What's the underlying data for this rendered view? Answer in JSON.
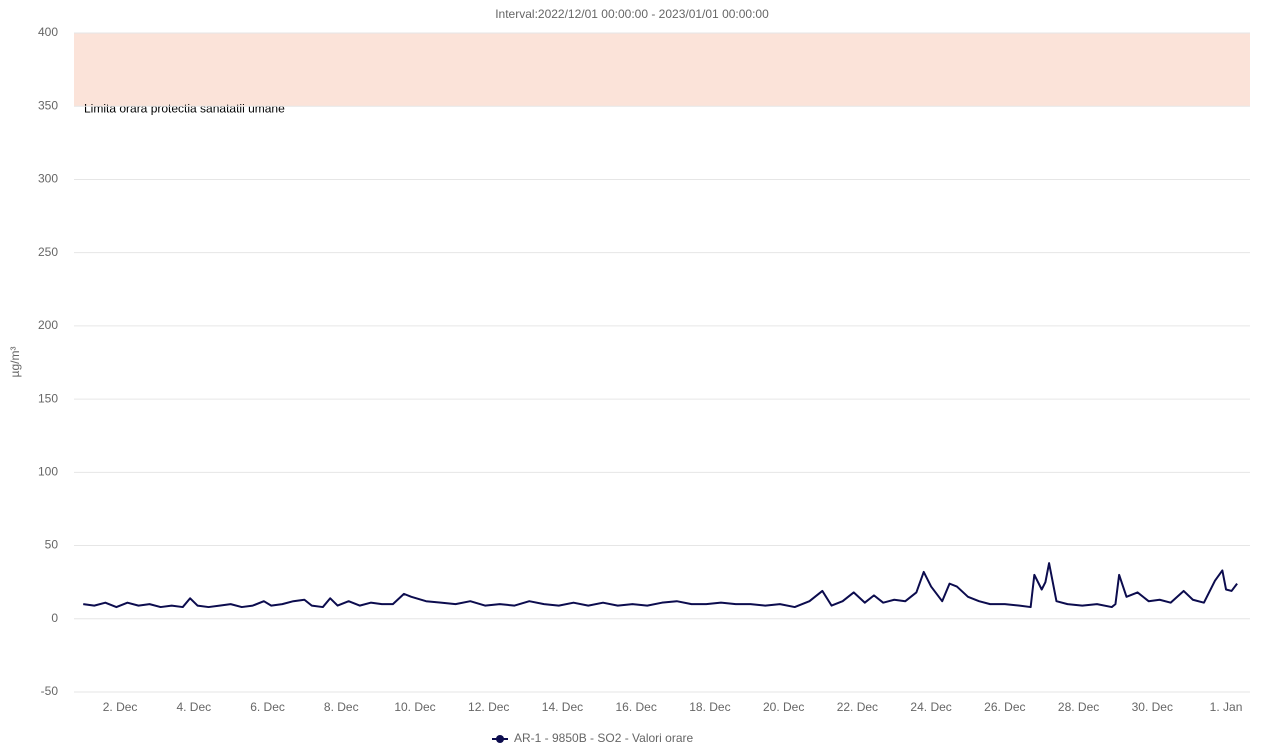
{
  "chart_data": {
    "type": "line",
    "title": "Interval:2022/12/01 00:00:00 - 2023/01/01 00:00:00",
    "y_label": "µg/m³",
    "xlim": [
      0.75,
      32.65
    ],
    "xticks": [
      {
        "value": 2,
        "label": "2. Dec"
      },
      {
        "value": 4,
        "label": "4. Dec"
      },
      {
        "value": 6,
        "label": "6. Dec"
      },
      {
        "value": 8,
        "label": "8. Dec"
      },
      {
        "value": 10,
        "label": "10. Dec"
      },
      {
        "value": 12,
        "label": "12. Dec"
      },
      {
        "value": 14,
        "label": "14. Dec"
      },
      {
        "value": 16,
        "label": "16. Dec"
      },
      {
        "value": 18,
        "label": "18. Dec"
      },
      {
        "value": 20,
        "label": "20. Dec"
      },
      {
        "value": 22,
        "label": "22. Dec"
      },
      {
        "value": 24,
        "label": "24. Dec"
      },
      {
        "value": 26,
        "label": "26. Dec"
      },
      {
        "value": 28,
        "label": "28. Dec"
      },
      {
        "value": 30,
        "label": "30. Dec"
      },
      {
        "value": 32,
        "label": "1. Jan"
      }
    ],
    "ylim": [
      -50,
      400
    ],
    "yticks": [
      -50,
      0,
      50,
      100,
      150,
      200,
      250,
      300,
      350,
      400
    ],
    "grid": true,
    "plot_bands": [
      {
        "from": 350,
        "to": 400,
        "color": "#fbe3d9",
        "label": "Limita orara protectia sanatatii umane"
      }
    ],
    "legend": "bottom",
    "x": [
      1,
      1.3,
      1.6,
      1.9,
      2.2,
      2.5,
      2.8,
      3.1,
      3.4,
      3.7,
      3.9,
      4.1,
      4.4,
      4.7,
      5.0,
      5.3,
      5.6,
      5.9,
      6.1,
      6.4,
      6.7,
      7.0,
      7.2,
      7.5,
      7.7,
      7.9,
      8.2,
      8.5,
      8.8,
      9.1,
      9.4,
      9.7,
      9.9,
      10.3,
      10.7,
      11.1,
      11.5,
      11.9,
      12.3,
      12.7,
      13.1,
      13.5,
      13.9,
      14.3,
      14.7,
      15.1,
      15.5,
      15.9,
      16.3,
      16.7,
      17.1,
      17.5,
      17.9,
      18.3,
      18.7,
      19.1,
      19.5,
      19.9,
      20.3,
      20.7,
      21.05,
      21.3,
      21.6,
      21.9,
      22.2,
      22.45,
      22.7,
      23.0,
      23.3,
      23.6,
      23.8,
      24.0,
      24.3,
      24.5,
      24.7,
      25.0,
      25.3,
      25.6,
      26.0,
      26.4,
      26.7,
      26.8,
      27.0,
      27.1,
      27.2,
      27.4,
      27.7,
      28.1,
      28.5,
      28.9,
      29.0,
      29.1,
      29.3,
      29.6,
      29.9,
      30.2,
      30.5,
      30.85,
      31.1,
      31.4,
      31.7,
      31.9,
      32.0,
      32.15,
      32.3
    ],
    "series": [
      {
        "name": "AR-1 - 9850B - SO2 - Valori orare",
        "color": "#0c0c4e",
        "values": [
          10,
          9,
          11,
          8,
          11,
          9,
          10,
          8,
          9,
          8,
          14,
          9,
          8,
          9,
          10,
          8,
          9,
          12,
          9,
          10,
          12,
          13,
          9,
          8,
          14,
          9,
          12,
          9,
          11,
          10,
          10,
          17,
          15,
          12,
          11,
          10,
          12,
          9,
          10,
          9,
          12,
          10,
          9,
          11,
          9,
          11,
          9,
          10,
          9,
          11,
          12,
          10,
          10,
          11,
          10,
          10,
          9,
          10,
          8,
          12,
          19,
          9,
          12,
          18,
          11,
          16,
          11,
          13,
          12,
          18,
          32,
          22,
          12,
          24,
          22,
          15,
          12,
          10,
          10,
          9,
          8,
          30,
          20,
          25,
          38,
          12,
          10,
          9,
          10,
          8,
          10,
          30,
          15,
          18,
          12,
          13,
          11,
          19,
          13,
          11,
          26,
          33,
          20,
          19,
          24
        ]
      }
    ]
  }
}
